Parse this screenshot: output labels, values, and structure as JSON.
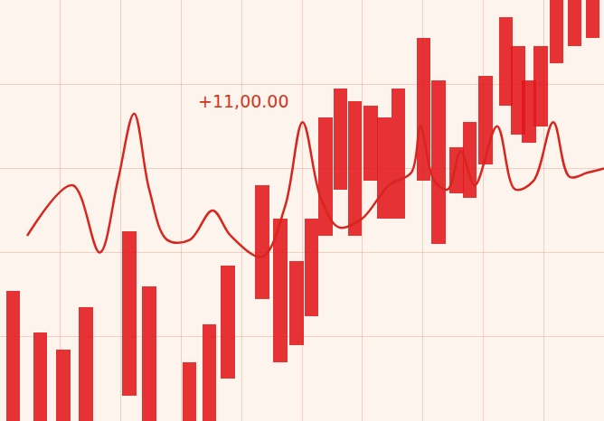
{
  "chart_data": {
    "type": "bar",
    "xlim": [
      0,
      100
    ],
    "xticks": [
      0,
      10,
      20,
      30,
      40,
      50,
      60,
      70,
      80,
      90,
      100
    ],
    "ylim": [
      0,
      100
    ],
    "yticks": [
      0,
      20,
      40,
      60,
      80,
      100
    ],
    "grid": true,
    "tick_labels": false,
    "series": [
      {
        "type": "bar",
        "color": "#e3161b",
        "x": [
          2.2,
          6.7,
          10.5,
          14.2,
          21.4,
          24.7,
          31.4,
          34.7,
          37.7,
          43.4,
          46.4,
          49.1,
          51.6,
          53.9,
          56.4,
          58.8,
          61.4,
          63.6,
          65.9,
          70.1,
          72.6,
          75.6,
          77.8,
          80.4,
          83.8,
          85.8,
          87.6,
          89.5,
          92.1,
          95.1,
          98.1
        ],
        "base": [
          0,
          0,
          0,
          0,
          6,
          0,
          0,
          0,
          10,
          29,
          14,
          18,
          25,
          44,
          55,
          44,
          57,
          48,
          48,
          57,
          42,
          54,
          53,
          61,
          75,
          68,
          66,
          70,
          85,
          89,
          91
        ],
        "values": [
          31,
          21,
          17,
          27,
          39,
          32,
          14,
          23,
          27,
          27,
          34,
          20,
          23,
          28,
          24,
          32,
          18,
          24,
          31,
          34,
          39,
          11,
          18,
          21,
          21,
          21,
          15,
          19,
          15,
          11,
          9
        ]
      },
      {
        "type": "line",
        "color": "#d7261e",
        "x": [
          4.5,
          12.0,
          16.5,
          19.5,
          22.2,
          24.7,
          27.7,
          31.4,
          35.2,
          38.2,
          43.4,
          47.2,
          50.1,
          53.1,
          56.1,
          59.9,
          64.4,
          68.1,
          69.6,
          71.9,
          74.1,
          76.3,
          78.6,
          82.3,
          85.3,
          88.3,
          91.6,
          94.3,
          97.3,
          100
        ],
        "values": [
          44,
          56,
          40,
          57,
          73,
          55,
          43,
          43,
          50,
          44,
          39,
          51,
          71,
          53,
          46,
          48,
          56,
          59,
          70,
          57,
          55,
          64,
          56,
          70,
          55,
          57,
          71,
          58,
          59,
          60
        ]
      }
    ],
    "annotations": [
      {
        "text": "+11,00.00",
        "x": 40.4,
        "y": 76
      }
    ]
  }
}
